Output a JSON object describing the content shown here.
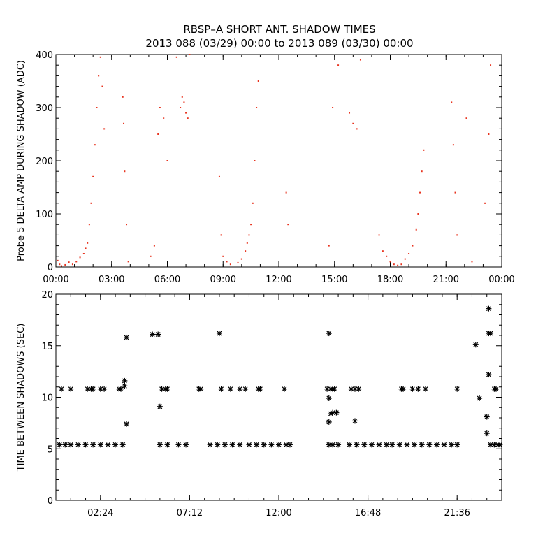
{
  "colors": {
    "top_points": "#e8331e",
    "bottom_points": "#000000",
    "axes": "#000000",
    "background": "#ffffff"
  },
  "header": {
    "title": "RBSP–A SHORT ANT. SHADOW TIMES",
    "subtitle": "2013 088 (03/29) 00:00 to 2013 089 (03/30) 00:00"
  },
  "chart_data": [
    {
      "type": "scatter",
      "ylabel": "Probe 5 DELTA AMP DURING SHADOW (ADC)",
      "xlabel": "",
      "x_units": "hours of 2013-03-29",
      "xlim": [
        0,
        24
      ],
      "ylim": [
        0,
        400
      ],
      "xticks": [
        "00:00",
        "03:00",
        "06:00",
        "09:00",
        "12:00",
        "15:00",
        "18:00",
        "21:00",
        "00:00"
      ],
      "yticks": [
        "0",
        "100",
        "200",
        "300",
        "400"
      ],
      "grid": false,
      "marker": "dot",
      "series": [
        {
          "values": [
            [
              0.1,
              12
            ],
            [
              0.2,
              5
            ],
            [
              0.3,
              2
            ],
            [
              0.5,
              4
            ],
            [
              0.7,
              9
            ],
            [
              0.9,
              5
            ],
            [
              1.1,
              10
            ],
            [
              1.3,
              18
            ],
            [
              1.5,
              25
            ],
            [
              1.6,
              35
            ],
            [
              1.7,
              45
            ],
            [
              1.8,
              80
            ],
            [
              1.9,
              120
            ],
            [
              2.0,
              170
            ],
            [
              2.1,
              230
            ],
            [
              2.2,
              300
            ],
            [
              2.3,
              360
            ],
            [
              2.4,
              395
            ],
            [
              2.5,
              340
            ],
            [
              2.6,
              260
            ],
            [
              3.6,
              320
            ],
            [
              3.65,
              270
            ],
            [
              3.7,
              180
            ],
            [
              3.8,
              80
            ],
            [
              3.9,
              10
            ],
            [
              5.1,
              20
            ],
            [
              5.3,
              40
            ],
            [
              5.5,
              250
            ],
            [
              5.6,
              300
            ],
            [
              5.8,
              280
            ],
            [
              6.0,
              200
            ],
            [
              6.7,
              300
            ],
            [
              6.8,
              320
            ],
            [
              6.9,
              310
            ],
            [
              7.0,
              290
            ],
            [
              7.1,
              280
            ],
            [
              7.2,
              400
            ],
            [
              6.5,
              395
            ],
            [
              8.8,
              170
            ],
            [
              8.9,
              60
            ],
            [
              9.0,
              20
            ],
            [
              9.2,
              10
            ],
            [
              9.4,
              5
            ],
            [
              9.8,
              8
            ],
            [
              10.0,
              15
            ],
            [
              10.2,
              30
            ],
            [
              10.3,
              45
            ],
            [
              10.4,
              60
            ],
            [
              10.5,
              80
            ],
            [
              10.6,
              120
            ],
            [
              10.7,
              200
            ],
            [
              10.8,
              300
            ],
            [
              10.9,
              350
            ],
            [
              12.4,
              140
            ],
            [
              12.5,
              80
            ],
            [
              14.7,
              40
            ],
            [
              14.9,
              300
            ],
            [
              15.2,
              380
            ],
            [
              15.8,
              290
            ],
            [
              16.0,
              270
            ],
            [
              16.2,
              260
            ],
            [
              16.4,
              390
            ],
            [
              17.4,
              60
            ],
            [
              17.6,
              30
            ],
            [
              17.8,
              20
            ],
            [
              18.0,
              10
            ],
            [
              18.2,
              5
            ],
            [
              18.4,
              3
            ],
            [
              18.6,
              5
            ],
            [
              18.8,
              15
            ],
            [
              19.0,
              25
            ],
            [
              19.2,
              40
            ],
            [
              19.4,
              70
            ],
            [
              19.5,
              100
            ],
            [
              19.6,
              140
            ],
            [
              19.7,
              180
            ],
            [
              19.8,
              220
            ],
            [
              21.3,
              310
            ],
            [
              21.4,
              230
            ],
            [
              21.5,
              140
            ],
            [
              21.6,
              60
            ],
            [
              22.1,
              280
            ],
            [
              22.4,
              10
            ],
            [
              23.1,
              120
            ],
            [
              23.3,
              250
            ],
            [
              23.4,
              380
            ]
          ]
        }
      ]
    },
    {
      "type": "scatter",
      "ylabel": "TIME BETWEEN SHADOWS (SEC)",
      "xlabel": "",
      "x_units": "hours of 2013-03-29",
      "xlim": [
        0,
        24
      ],
      "ylim": [
        0,
        20
      ],
      "xticks": [
        "02:24",
        "07:12",
        "12:00",
        "16:48",
        "21:36"
      ],
      "yticks": [
        "0",
        "5",
        "10",
        "15",
        "20"
      ],
      "grid": false,
      "marker": "asterisk",
      "series": [
        {
          "values": [
            [
              0.2,
              5.4
            ],
            [
              0.5,
              5.4
            ],
            [
              0.8,
              5.4
            ],
            [
              1.2,
              5.4
            ],
            [
              1.6,
              5.4
            ],
            [
              2.0,
              5.4
            ],
            [
              2.4,
              5.4
            ],
            [
              2.8,
              5.4
            ],
            [
              3.2,
              5.4
            ],
            [
              3.6,
              5.4
            ],
            [
              0.3,
              10.8
            ],
            [
              0.8,
              10.8
            ],
            [
              1.7,
              10.8
            ],
            [
              1.9,
              10.8
            ],
            [
              2.0,
              10.8
            ],
            [
              2.4,
              10.8
            ],
            [
              2.6,
              10.8
            ],
            [
              3.4,
              10.8
            ],
            [
              3.5,
              10.8
            ],
            [
              3.7,
              11.1
            ],
            [
              3.7,
              11.6
            ],
            [
              3.8,
              15.8
            ],
            [
              3.8,
              7.4
            ],
            [
              5.2,
              16.1
            ],
            [
              5.5,
              16.1
            ],
            [
              5.6,
              9.1
            ],
            [
              5.7,
              10.8
            ],
            [
              5.9,
              10.8
            ],
            [
              6.0,
              10.8
            ],
            [
              5.6,
              5.4
            ],
            [
              6.0,
              5.4
            ],
            [
              6.6,
              5.4
            ],
            [
              7.0,
              5.4
            ],
            [
              7.7,
              10.8
            ],
            [
              7.8,
              10.8
            ],
            [
              8.3,
              5.4
            ],
            [
              8.7,
              5.4
            ],
            [
              9.1,
              5.4
            ],
            [
              9.5,
              5.4
            ],
            [
              9.9,
              5.4
            ],
            [
              8.8,
              16.2
            ],
            [
              8.9,
              10.8
            ],
            [
              9.4,
              10.8
            ],
            [
              9.9,
              10.8
            ],
            [
              10.2,
              10.8
            ],
            [
              10.9,
              10.8
            ],
            [
              11.0,
              10.8
            ],
            [
              10.4,
              5.4
            ],
            [
              10.8,
              5.4
            ],
            [
              11.2,
              5.4
            ],
            [
              11.6,
              5.4
            ],
            [
              12.0,
              5.4
            ],
            [
              12.4,
              5.4
            ],
            [
              12.6,
              5.4
            ],
            [
              12.3,
              10.8
            ],
            [
              14.6,
              10.8
            ],
            [
              14.8,
              10.8
            ],
            [
              14.9,
              10.8
            ],
            [
              15.0,
              10.8
            ],
            [
              14.7,
              16.2
            ],
            [
              14.7,
              9.9
            ],
            [
              14.7,
              7.6
            ],
            [
              14.8,
              8.4
            ],
            [
              14.9,
              8.5
            ],
            [
              15.1,
              8.5
            ],
            [
              14.7,
              5.4
            ],
            [
              14.9,
              5.4
            ],
            [
              15.2,
              5.4
            ],
            [
              15.9,
              10.8
            ],
            [
              16.1,
              10.8
            ],
            [
              16.3,
              10.8
            ],
            [
              16.1,
              7.7
            ],
            [
              15.8,
              5.4
            ],
            [
              16.2,
              5.4
            ],
            [
              16.6,
              5.4
            ],
            [
              17.0,
              5.4
            ],
            [
              17.4,
              5.4
            ],
            [
              17.8,
              5.4
            ],
            [
              18.1,
              5.4
            ],
            [
              18.5,
              5.4
            ],
            [
              18.6,
              10.8
            ],
            [
              18.7,
              10.8
            ],
            [
              19.2,
              10.8
            ],
            [
              19.5,
              10.8
            ],
            [
              19.9,
              10.8
            ],
            [
              18.9,
              5.4
            ],
            [
              19.3,
              5.4
            ],
            [
              19.7,
              5.4
            ],
            [
              20.1,
              5.4
            ],
            [
              20.5,
              5.4
            ],
            [
              20.9,
              5.4
            ],
            [
              21.3,
              5.4
            ],
            [
              21.6,
              5.4
            ],
            [
              21.6,
              10.8
            ],
            [
              22.6,
              15.1
            ],
            [
              22.8,
              9.9
            ],
            [
              23.3,
              18.6
            ],
            [
              23.3,
              16.2
            ],
            [
              23.4,
              16.2
            ],
            [
              23.3,
              12.2
            ],
            [
              23.2,
              8.1
            ],
            [
              23.2,
              6.5
            ],
            [
              23.6,
              10.8
            ],
            [
              23.7,
              10.8
            ],
            [
              23.4,
              5.4
            ],
            [
              23.6,
              5.4
            ],
            [
              23.8,
              5.4
            ],
            [
              23.9,
              5.4
            ]
          ]
        }
      ]
    }
  ]
}
